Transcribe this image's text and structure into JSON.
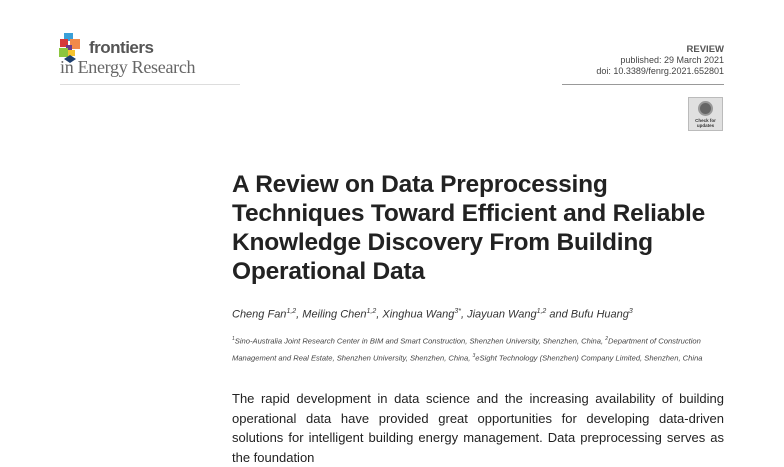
{
  "header": {
    "brand": "frontiers",
    "journal": "in Energy Research",
    "article_type": "REVIEW",
    "published": "published: 29 March 2021",
    "doi": "doi: 10.3389/fenrg.2021.652801",
    "badge_text": "Check for updates"
  },
  "article": {
    "title": "A Review on Data Preprocessing Techniques Toward Efficient and Reliable Knowledge Discovery From Building Operational Data",
    "authors": [
      {
        "name": "Cheng Fan",
        "sup": "1,2",
        "sep": ", "
      },
      {
        "name": "Meiling Chen",
        "sup": "1,2",
        "sep": ", "
      },
      {
        "name": "Xinghua Wang",
        "sup": "3*",
        "sep": ", "
      },
      {
        "name": "Jiayuan Wang",
        "sup": "1,2",
        "sep": " and "
      },
      {
        "name": "Bufu Huang",
        "sup": "3",
        "sep": ""
      }
    ],
    "affiliations": [
      {
        "sup": "1",
        "text": "Sino-Australia Joint Research Center in BIM and Smart Construction, Shenzhen University, Shenzhen, China, "
      },
      {
        "sup": "2",
        "text": "Department of Construction Management and Real Estate, Shenzhen University, Shenzhen, China, "
      },
      {
        "sup": "3",
        "text": "eSight Technology (Shenzhen) Company Limited, Shenzhen, China"
      }
    ],
    "abstract": "The rapid development in data science and the increasing availability of building operational data have provided great opportunities for developing data-driven solutions for intelligent building energy management. Data preprocessing serves as the foundation"
  }
}
